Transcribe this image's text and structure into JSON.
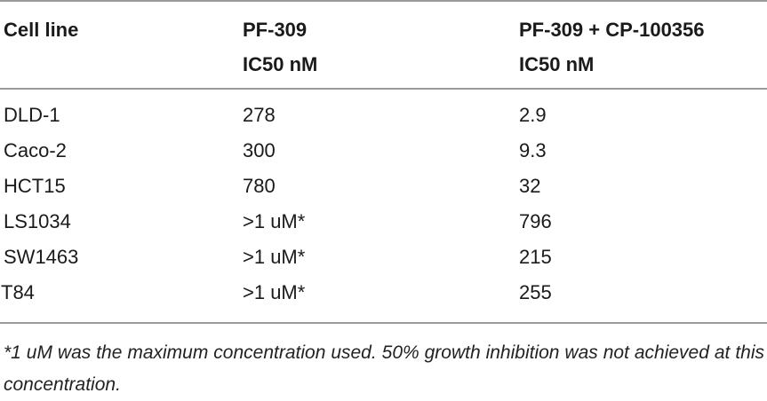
{
  "table": {
    "headers": [
      {
        "line1": "Cell line",
        "line2": ""
      },
      {
        "line1": "PF-309",
        "line2": "IC50 nM"
      },
      {
        "line1": "PF-309 + CP-100356",
        "line2": "IC50 nM"
      }
    ],
    "rows": [
      [
        "DLD-1",
        "278",
        "2.9"
      ],
      [
        "Caco-2",
        "300",
        "9.3"
      ],
      [
        "HCT15",
        "780",
        "32"
      ],
      [
        "LS1034",
        ">1 uM*",
        "796"
      ],
      [
        "SW1463",
        ">1 uM*",
        "215"
      ],
      [
        "T84",
        ">1 uM*",
        "255"
      ]
    ]
  },
  "footnote": "*1 uM was the maximum concentration used. 50% growth inhibition was not achieved at this concentration."
}
